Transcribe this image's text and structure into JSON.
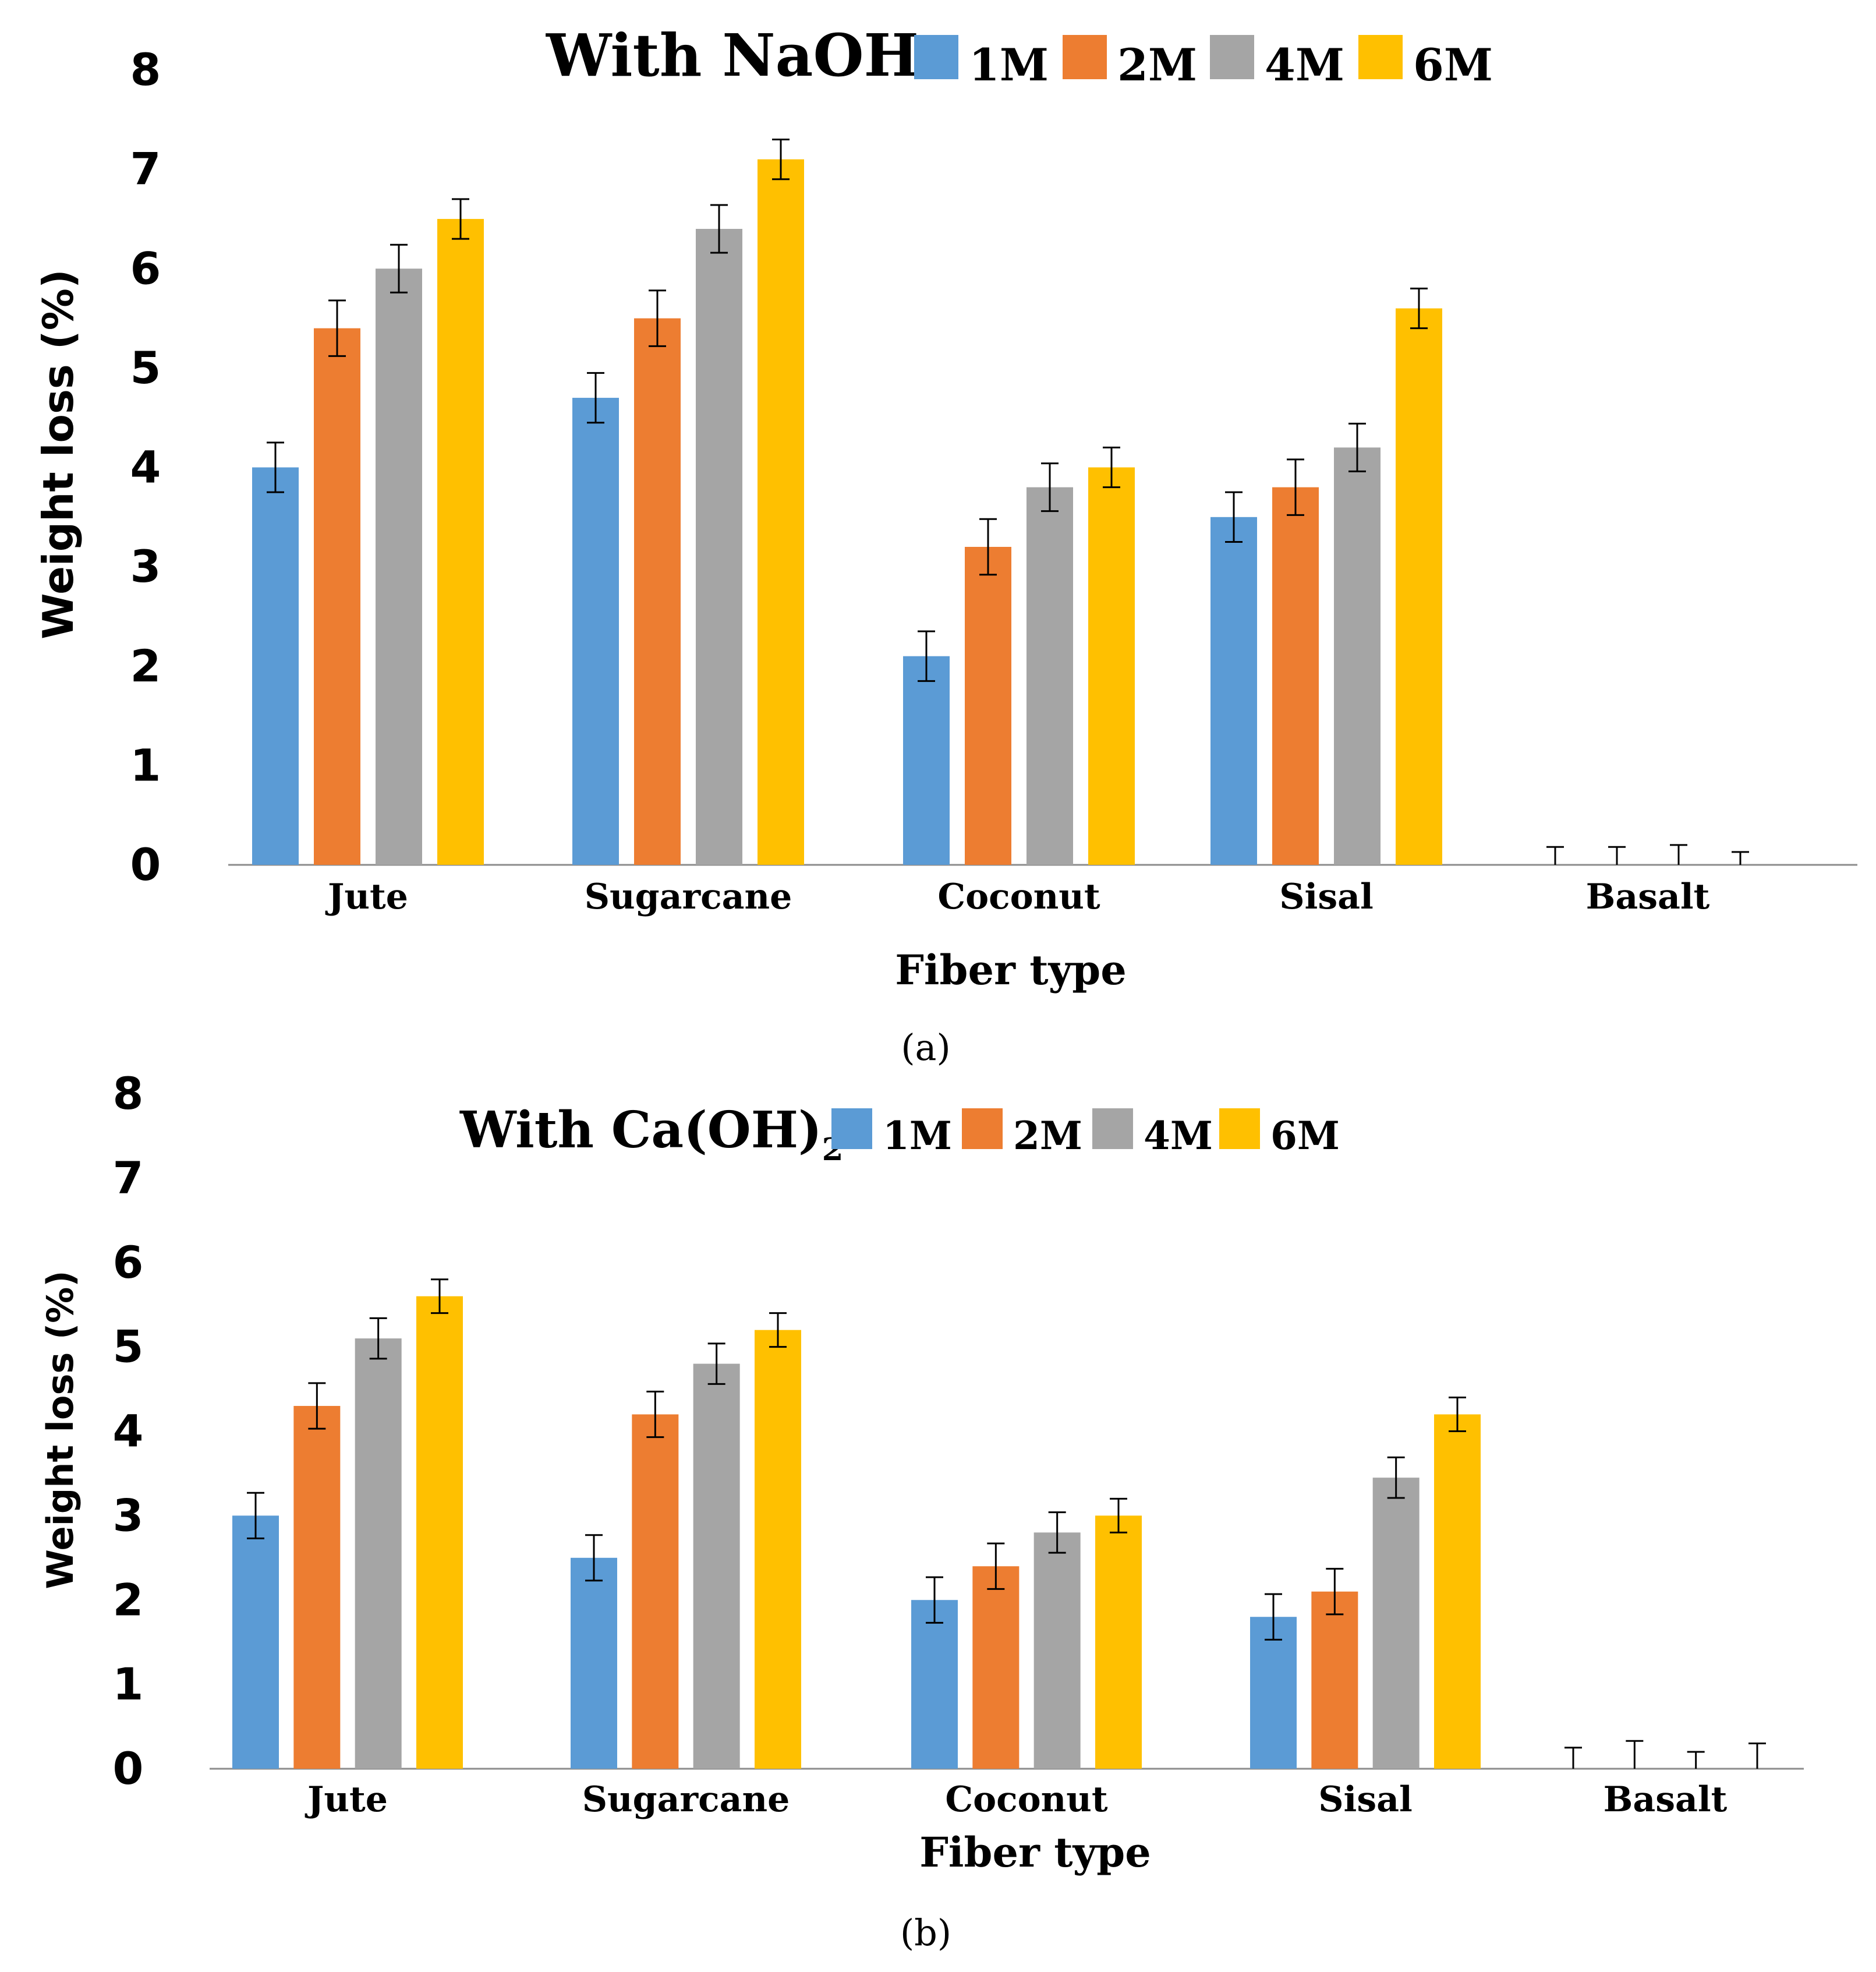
{
  "chart_data": [
    {
      "type": "bar",
      "panel_label": "(a)",
      "title": "With NaOH",
      "xlabel": "Fiber type",
      "ylabel": "Weight loss (%)",
      "ylim": [
        0,
        8
      ],
      "yticks": [
        "0",
        "1",
        "2",
        "3",
        "4",
        "5",
        "6",
        "7",
        "8"
      ],
      "categories": [
        "Jute",
        "Sugarcane",
        "Coconut",
        "Sisal",
        "Basalt"
      ],
      "series": [
        {
          "name": "1M",
          "values": [
            4.0,
            4.7,
            2.1,
            3.5,
            0.0
          ],
          "errors": [
            0.25,
            0.25,
            0.25,
            0.25,
            0.18
          ]
        },
        {
          "name": "2M",
          "values": [
            5.4,
            5.5,
            3.2,
            3.8,
            0.0
          ],
          "errors": [
            0.28,
            0.28,
            0.28,
            0.28,
            0.18
          ]
        },
        {
          "name": "4M",
          "values": [
            6.0,
            6.4,
            3.8,
            4.2,
            0.0
          ],
          "errors": [
            0.24,
            0.24,
            0.24,
            0.24,
            0.2
          ]
        },
        {
          "name": "6M",
          "values": [
            6.5,
            7.1,
            4.0,
            5.6,
            0.0
          ],
          "errors": [
            0.2,
            0.2,
            0.2,
            0.2,
            0.13
          ]
        }
      ],
      "legend_position": "top",
      "grid": false
    },
    {
      "type": "bar",
      "panel_label": "(b)",
      "title": "With Ca(OH)",
      "title_subscript": "2",
      "xlabel": "Fiber type",
      "ylabel": "Weight loss (%)",
      "ylim": [
        0,
        8
      ],
      "yticks": [
        "0",
        "1",
        "2",
        "3",
        "4",
        "5",
        "6",
        "7",
        "8"
      ],
      "categories": [
        "Jute",
        "Sugarcane",
        "Coconut",
        "Sisal",
        "Basalt"
      ],
      "series": [
        {
          "name": "1M",
          "values": [
            3.0,
            2.5,
            2.0,
            1.8,
            0.0
          ],
          "errors": [
            0.27,
            0.27,
            0.27,
            0.27,
            0.25
          ]
        },
        {
          "name": "2M",
          "values": [
            4.3,
            4.2,
            2.4,
            2.1,
            0.0
          ],
          "errors": [
            0.27,
            0.27,
            0.27,
            0.27,
            0.33
          ]
        },
        {
          "name": "4M",
          "values": [
            5.1,
            4.8,
            2.8,
            3.45,
            0.0
          ],
          "errors": [
            0.24,
            0.24,
            0.24,
            0.24,
            0.2
          ]
        },
        {
          "name": "6M",
          "values": [
            5.6,
            5.2,
            3.0,
            4.2,
            0.0
          ],
          "errors": [
            0.2,
            0.2,
            0.2,
            0.2,
            0.3
          ]
        }
      ],
      "legend_position": "top",
      "grid": false
    }
  ],
  "colors": {
    "1M": "#5B9BD5",
    "2M": "#ED7D31",
    "4M": "#A5A5A5",
    "6M": "#FFC000",
    "axis": "#8c8c8c",
    "text": "#000000"
  }
}
